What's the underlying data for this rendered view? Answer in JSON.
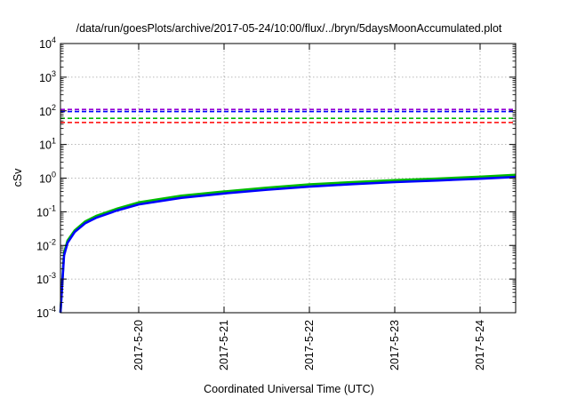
{
  "chart_data": {
    "type": "line",
    "title": "/data/run/goesPlots/archive/2017-05-24/10:00/flux/../bryn/5daysMoonAccumulated.plot",
    "xlabel": "Coordinated Universal Time (UTC)",
    "ylabel": "cSv",
    "y_scale": "log",
    "ylim": [
      0.0001,
      10000
    ],
    "xlim": [
      "2017-05-19 02:00",
      "2017-05-24 10:00"
    ],
    "x_ticks": [
      {
        "label": "2017-5-20",
        "value": "2017-05-20 00:00"
      },
      {
        "label": "2017-5-21",
        "value": "2017-05-21 00:00"
      },
      {
        "label": "2017-5-22",
        "value": "2017-05-22 00:00"
      },
      {
        "label": "2017-5-23",
        "value": "2017-05-23 00:00"
      },
      {
        "label": "2017-5-24",
        "value": "2017-05-24 00:00"
      }
    ],
    "y_ticks": [
      {
        "base": "10",
        "exp": "-4",
        "value": 0.0001
      },
      {
        "base": "10",
        "exp": "-3",
        "value": 0.001
      },
      {
        "base": "10",
        "exp": "-2",
        "value": 0.01
      },
      {
        "base": "10",
        "exp": "-1",
        "value": 0.1
      },
      {
        "base": "10",
        "exp": "0",
        "value": 1
      },
      {
        "base": "10",
        "exp": "1",
        "value": 10
      },
      {
        "base": "10",
        "exp": "2",
        "value": 100
      },
      {
        "base": "10",
        "exp": "3",
        "value": 1000
      },
      {
        "base": "10",
        "exp": "4",
        "value": 10000
      }
    ],
    "grid": true,
    "legend": "none",
    "thresholds": [
      {
        "value": 110,
        "color": "#9400d3"
      },
      {
        "value": 95,
        "color": "#0000ff"
      },
      {
        "value": 60,
        "color": "#00bb00"
      },
      {
        "value": 45,
        "color": "#ff0000"
      }
    ],
    "series": [
      {
        "color": "#00bb00",
        "points": [
          [
            "2017-05-19 02:00",
            0.0001
          ],
          [
            "2017-05-19 03:00",
            0.006
          ],
          [
            "2017-05-19 04:00",
            0.014
          ],
          [
            "2017-05-19 06:00",
            0.028
          ],
          [
            "2017-05-19 09:00",
            0.052
          ],
          [
            "2017-05-19 12:00",
            0.075
          ],
          [
            "2017-05-19 18:00",
            0.125
          ],
          [
            "2017-05-20 00:00",
            0.19
          ],
          [
            "2017-05-20 12:00",
            0.3
          ],
          [
            "2017-05-21 00:00",
            0.4
          ],
          [
            "2017-05-21 12:00",
            0.52
          ],
          [
            "2017-05-22 00:00",
            0.65
          ],
          [
            "2017-05-22 12:00",
            0.76
          ],
          [
            "2017-05-23 00:00",
            0.87
          ],
          [
            "2017-05-23 12:00",
            0.97
          ],
          [
            "2017-05-24 00:00",
            1.1
          ],
          [
            "2017-05-24 10:00",
            1.25
          ]
        ]
      },
      {
        "color": "#0000ff",
        "points": [
          [
            "2017-05-19 02:00",
            0.0001
          ],
          [
            "2017-05-19 03:00",
            0.005
          ],
          [
            "2017-05-19 04:00",
            0.012
          ],
          [
            "2017-05-19 06:00",
            0.025
          ],
          [
            "2017-05-19 09:00",
            0.046
          ],
          [
            "2017-05-19 12:00",
            0.066
          ],
          [
            "2017-05-19 18:00",
            0.11
          ],
          [
            "2017-05-20 00:00",
            0.165
          ],
          [
            "2017-05-20 12:00",
            0.26
          ],
          [
            "2017-05-21 00:00",
            0.35
          ],
          [
            "2017-05-21 12:00",
            0.45
          ],
          [
            "2017-05-22 00:00",
            0.56
          ],
          [
            "2017-05-22 12:00",
            0.66
          ],
          [
            "2017-05-23 00:00",
            0.76
          ],
          [
            "2017-05-23 12:00",
            0.85
          ],
          [
            "2017-05-24 00:00",
            0.96
          ],
          [
            "2017-05-24 10:00",
            1.08
          ]
        ]
      }
    ]
  }
}
